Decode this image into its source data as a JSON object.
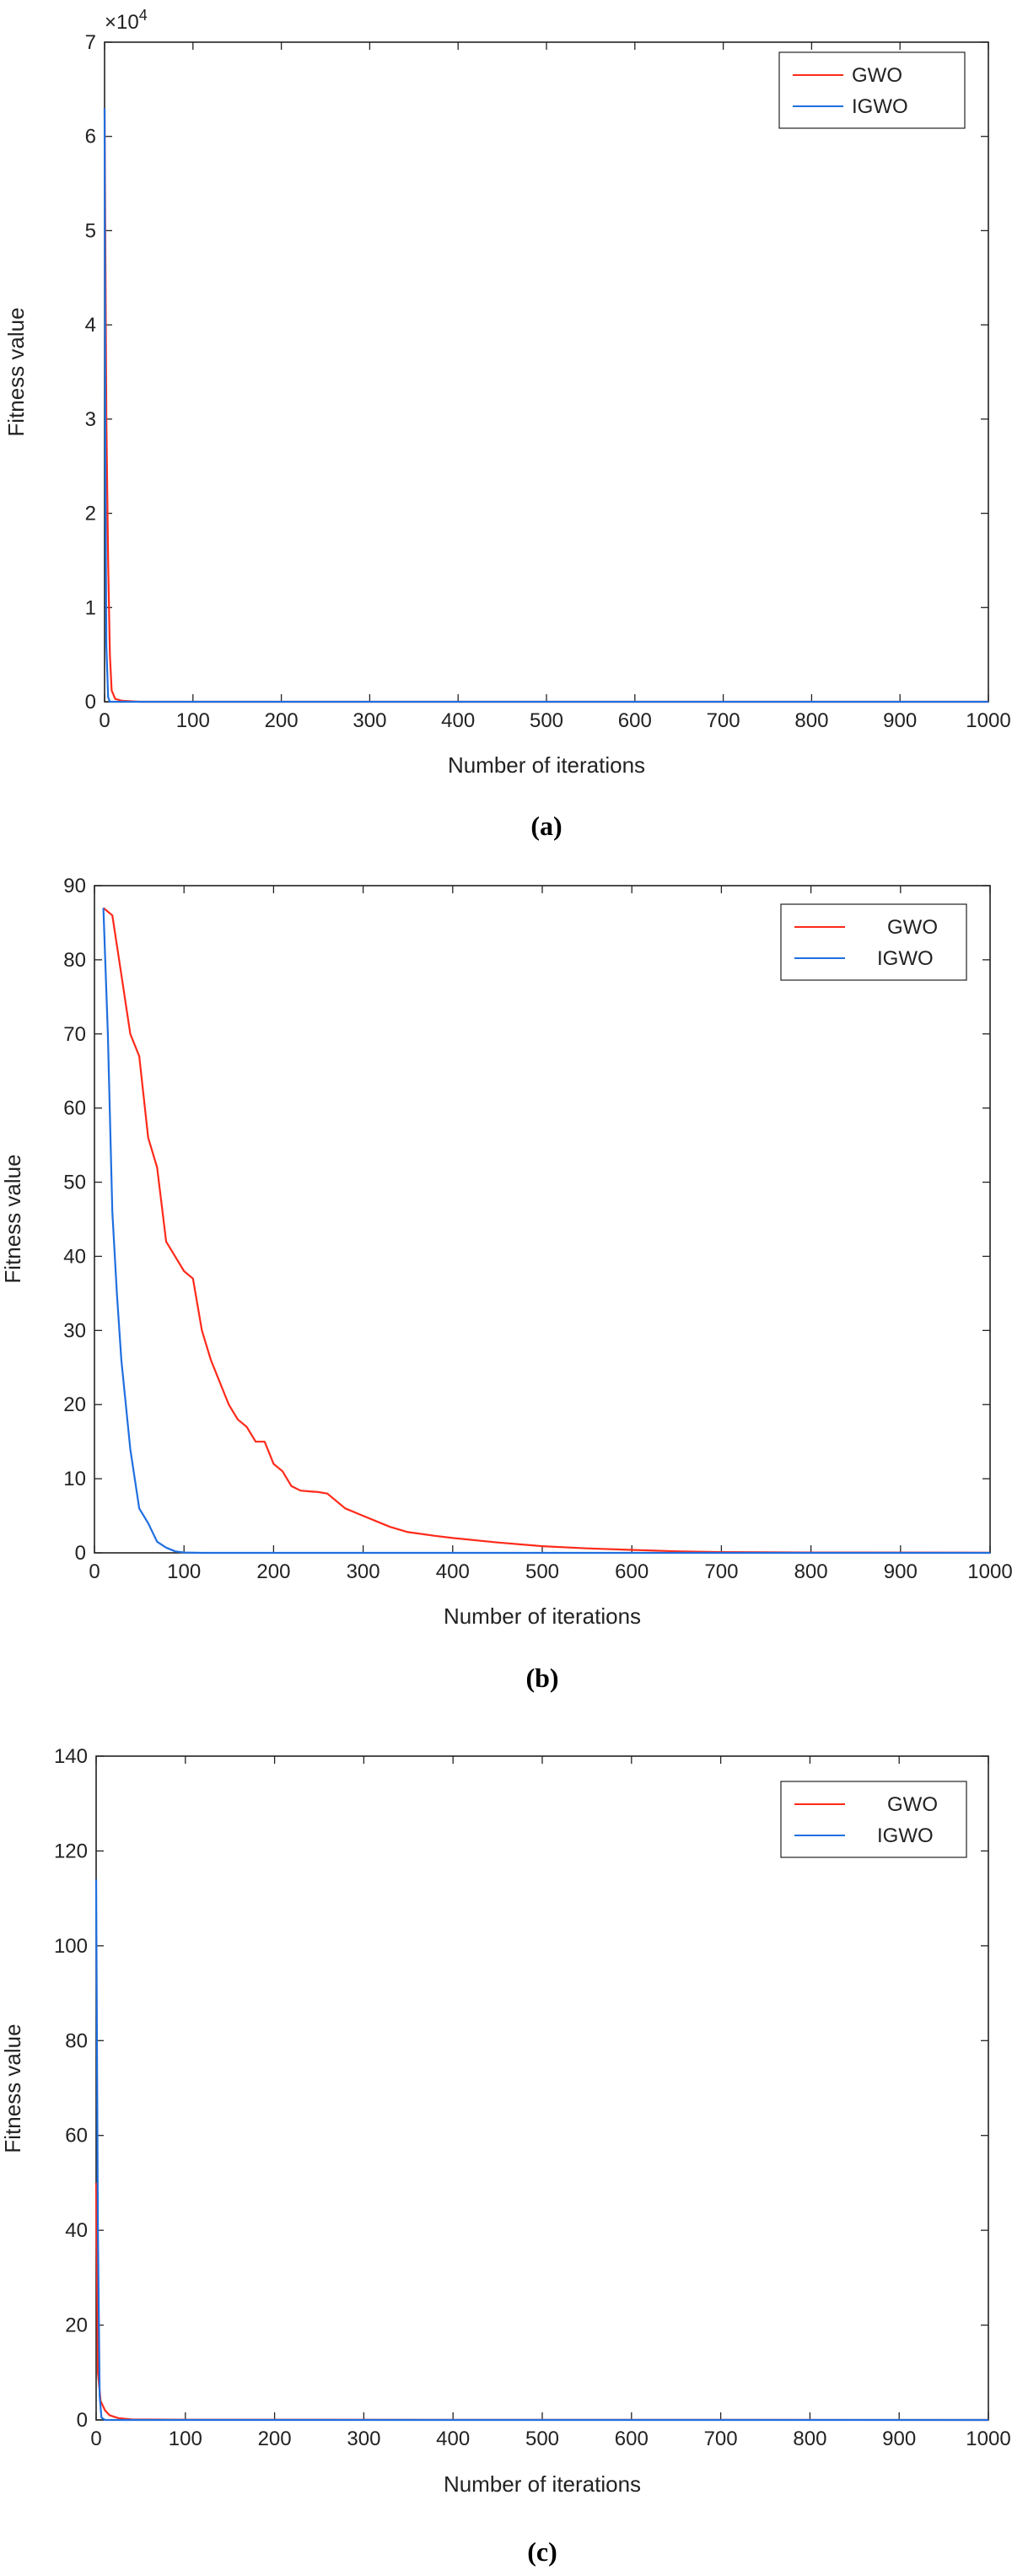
{
  "chart_data": [
    {
      "type": "line",
      "caption": "(a)",
      "xlabel": "Number of iterations",
      "ylabel": "Fitness value",
      "xlim": [
        0,
        1000
      ],
      "ylim": [
        0,
        7
      ],
      "y_exponent_label": "×10",
      "y_exponent_power": "4",
      "xticks": [
        0,
        100,
        200,
        300,
        400,
        500,
        600,
        700,
        800,
        900,
        1000
      ],
      "yticks": [
        0,
        1,
        2,
        3,
        4,
        5,
        6,
        7
      ],
      "legend_position": "top-right",
      "series": [
        {
          "name": "GWO",
          "color": "#ff2a1a",
          "points": [
            [
              0,
              6.3
            ],
            [
              2,
              3.0
            ],
            [
              4,
              1.5
            ],
            [
              6,
              0.5
            ],
            [
              8,
              0.12
            ],
            [
              12,
              0.03
            ],
            [
              20,
              0.01
            ],
            [
              40,
              0.0
            ],
            [
              1000,
              0.0
            ]
          ]
        },
        {
          "name": "IGWO",
          "color": "#1f6fe0",
          "points": [
            [
              0,
              6.3
            ],
            [
              1,
              2.5
            ],
            [
              2,
              0.6
            ],
            [
              4,
              0.05
            ],
            [
              6,
              0.0
            ],
            [
              1000,
              0.0
            ]
          ]
        }
      ]
    },
    {
      "type": "line",
      "caption": "(b)",
      "xlabel": "Number of iterations",
      "ylabel": "Fitness value",
      "xlim": [
        0,
        1000
      ],
      "ylim": [
        0,
        90
      ],
      "xticks": [
        0,
        100,
        200,
        300,
        400,
        500,
        600,
        700,
        800,
        900,
        1000
      ],
      "yticks": [
        0,
        10,
        20,
        30,
        40,
        50,
        60,
        70,
        80,
        90
      ],
      "legend_position": "top-right",
      "series": [
        {
          "name": "GWO",
          "color": "#ff2a1a",
          "points": [
            [
              10,
              87
            ],
            [
              20,
              86
            ],
            [
              30,
              78
            ],
            [
              40,
              70
            ],
            [
              50,
              67
            ],
            [
              60,
              56
            ],
            [
              70,
              52
            ],
            [
              80,
              42
            ],
            [
              90,
              40
            ],
            [
              100,
              38
            ],
            [
              110,
              37
            ],
            [
              120,
              30
            ],
            [
              130,
              26
            ],
            [
              140,
              23
            ],
            [
              150,
              20
            ],
            [
              160,
              18
            ],
            [
              170,
              17
            ],
            [
              180,
              15
            ],
            [
              190,
              15
            ],
            [
              200,
              12
            ],
            [
              210,
              11
            ],
            [
              220,
              9
            ],
            [
              230,
              8.4
            ],
            [
              240,
              8.3
            ],
            [
              250,
              8.2
            ],
            [
              260,
              8.0
            ],
            [
              280,
              6
            ],
            [
              300,
              5
            ],
            [
              320,
              4
            ],
            [
              330,
              3.5
            ],
            [
              350,
              2.8
            ],
            [
              380,
              2.3
            ],
            [
              400,
              2.0
            ],
            [
              450,
              1.4
            ],
            [
              500,
              0.9
            ],
            [
              550,
              0.6
            ],
            [
              600,
              0.4
            ],
            [
              650,
              0.2
            ],
            [
              700,
              0.1
            ],
            [
              800,
              0.05
            ],
            [
              1000,
              0.02
            ]
          ]
        },
        {
          "name": "IGWO",
          "color": "#1f6fe0",
          "points": [
            [
              10,
              87
            ],
            [
              15,
              70
            ],
            [
              20,
              46
            ],
            [
              25,
              35
            ],
            [
              30,
              26
            ],
            [
              35,
              20
            ],
            [
              40,
              14
            ],
            [
              50,
              6
            ],
            [
              60,
              4
            ],
            [
              70,
              1.5
            ],
            [
              80,
              0.7
            ],
            [
              90,
              0.2
            ],
            [
              100,
              0.05
            ],
            [
              120,
              0.0
            ],
            [
              1000,
              0.0
            ]
          ]
        }
      ]
    },
    {
      "type": "line",
      "caption": "(c)",
      "xlabel": "Number of iterations",
      "ylabel": "Fitness value",
      "xlim": [
        0,
        1000
      ],
      "ylim": [
        0,
        140
      ],
      "xticks": [
        0,
        100,
        200,
        300,
        400,
        500,
        600,
        700,
        800,
        900,
        1000
      ],
      "yticks": [
        0,
        20,
        40,
        60,
        80,
        100,
        120,
        140
      ],
      "legend_position": "top-right",
      "series": [
        {
          "name": "GWO",
          "color": "#ff2a1a",
          "points": [
            [
              0,
              50
            ],
            [
              2,
              10
            ],
            [
              5,
              4
            ],
            [
              10,
              2
            ],
            [
              15,
              1
            ],
            [
              25,
              0.4
            ],
            [
              40,
              0.1
            ],
            [
              100,
              0.05
            ],
            [
              1000,
              0.0
            ]
          ]
        },
        {
          "name": "IGWO",
          "color": "#1f6fe0",
          "points": [
            [
              0,
              114
            ],
            [
              2,
              40
            ],
            [
              4,
              5
            ],
            [
              6,
              0.5
            ],
            [
              10,
              0.0
            ],
            [
              1000,
              0.0
            ]
          ]
        }
      ]
    }
  ]
}
